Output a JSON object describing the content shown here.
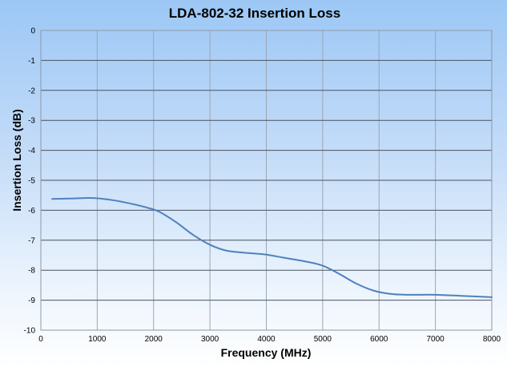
{
  "chart_data": {
    "type": "line",
    "title": "LDA-802-32 Insertion Loss",
    "xlabel": "Frequency (MHz)",
    "ylabel": "Insertion Loss (dB)",
    "xlim": [
      0,
      8000
    ],
    "ylim": [
      -10,
      0
    ],
    "xticks": [
      0,
      1000,
      2000,
      3000,
      4000,
      5000,
      6000,
      7000,
      8000
    ],
    "yticks": [
      0,
      -1,
      -2,
      -3,
      -4,
      -5,
      -6,
      -7,
      -8,
      -9,
      -10
    ],
    "grid": true,
    "legend": "none",
    "colors": {
      "line": "#4f81bd",
      "background_top": "#9cc7f5",
      "background_bottom": "#ffffff"
    },
    "series": [
      {
        "x": [
          200,
          500,
          800,
          1000,
          1300,
          1600,
          1900,
          2100,
          2400,
          2700,
          3000,
          3300,
          3700,
          4000,
          4300,
          4700,
          5000,
          5300,
          5600,
          5900,
          6200,
          6500,
          7000,
          7500,
          8000
        ],
        "y": [
          -5.62,
          -5.61,
          -5.59,
          -5.6,
          -5.67,
          -5.78,
          -5.92,
          -6.05,
          -6.4,
          -6.82,
          -7.15,
          -7.35,
          -7.43,
          -7.48,
          -7.58,
          -7.71,
          -7.85,
          -8.13,
          -8.45,
          -8.68,
          -8.79,
          -8.82,
          -8.82,
          -8.86,
          -8.9
        ]
      }
    ]
  }
}
